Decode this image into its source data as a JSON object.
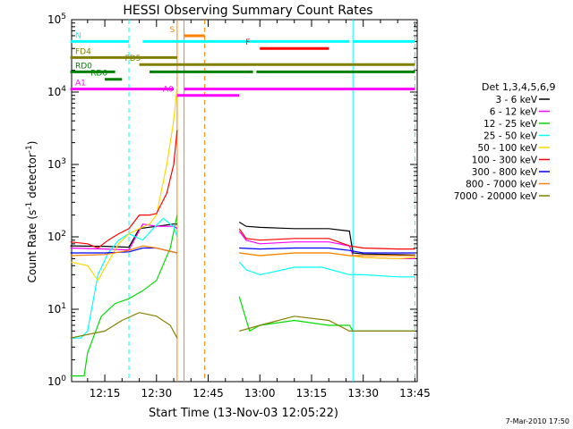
{
  "chart_data": {
    "type": "line",
    "title": "HESSI Observing Summary Count Rates",
    "xlabel": "Start Time (13-Nov-03 12:05:22)",
    "ylabel": "Count Rate (s",
    "ylabel_sup1": "-1",
    "ylabel_mid": " detector",
    "ylabel_sup2": "-1",
    "ylabel_end": ")",
    "y_scale": "log",
    "ylim": [
      1,
      100000
    ],
    "xlim": [
      "12:05:22",
      "13:45:40"
    ],
    "y_ticks": [
      {
        "value": 1,
        "base": "10",
        "exp": "0"
      },
      {
        "value": 10,
        "base": "10",
        "exp": "1"
      },
      {
        "value": 100,
        "base": "10",
        "exp": "2"
      },
      {
        "value": 1000,
        "base": "10",
        "exp": "3"
      },
      {
        "value": 10000,
        "base": "10",
        "exp": "4"
      },
      {
        "value": 100000,
        "base": "10",
        "exp": "5"
      }
    ],
    "x_ticks": [
      {
        "time": "12:15",
        "label": "12:15"
      },
      {
        "time": "12:30",
        "label": "12:30"
      },
      {
        "time": "12:45",
        "label": "12:45"
      },
      {
        "time": "13:00",
        "label": "13:00"
      },
      {
        "time": "13:15",
        "label": "13:15"
      },
      {
        "time": "13:30",
        "label": "13:30"
      },
      {
        "time": "13:45",
        "label": "13:45"
      }
    ],
    "legend_title": "Det 1,3,4,5,6,9",
    "series": [
      {
        "name": "3 - 6 keV",
        "color": "#000000",
        "points": [
          [
            "12:05",
            "75"
          ],
          [
            "12:15",
            "74"
          ],
          [
            "12:22",
            "72"
          ],
          [
            "12:25",
            "130"
          ],
          [
            "12:30",
            "140"
          ],
          [
            "12:35",
            "150"
          ],
          [
            "12:36",
            "150"
          ],
          [
            "12:54",
            "160"
          ],
          [
            "12:56",
            "140"
          ],
          [
            "13:00",
            "135"
          ],
          [
            "13:10",
            "130"
          ],
          [
            "13:20",
            "130"
          ],
          [
            "13:26",
            "120"
          ],
          [
            "13:27",
            "60"
          ],
          [
            "13:30",
            "58"
          ],
          [
            "13:40",
            "57"
          ],
          [
            "13:45",
            "56"
          ]
        ]
      },
      {
        "name": "6 - 12 keV",
        "color": "#ff00ff",
        "points": [
          [
            "12:05",
            "70"
          ],
          [
            "12:15",
            "68"
          ],
          [
            "12:22",
            "66"
          ],
          [
            "12:26",
            "150"
          ],
          [
            "12:30",
            "140"
          ],
          [
            "12:35",
            "140"
          ],
          [
            "12:36",
            "130"
          ],
          [
            "12:54",
            "120"
          ],
          [
            "12:56",
            "90"
          ],
          [
            "13:00",
            "80"
          ],
          [
            "13:10",
            "85"
          ],
          [
            "13:20",
            "85"
          ],
          [
            "13:26",
            "75"
          ],
          [
            "13:27",
            "55"
          ],
          [
            "13:30",
            "52"
          ],
          [
            "13:40",
            "50"
          ],
          [
            "13:45",
            "50"
          ]
        ]
      },
      {
        "name": "12 - 25 keV",
        "color": "#00dd00",
        "points": [
          [
            "12:05",
            "1.2"
          ],
          [
            "12:09",
            "1.2"
          ],
          [
            "12:10",
            "2.5"
          ],
          [
            "12:14",
            "8"
          ],
          [
            "12:18",
            "12"
          ],
          [
            "12:22",
            "14"
          ],
          [
            "12:26",
            "18"
          ],
          [
            "12:30",
            "25"
          ],
          [
            "12:34",
            "70"
          ],
          [
            "12:36",
            "200"
          ],
          [
            "12:54",
            "15"
          ],
          [
            "12:57",
            "5"
          ],
          [
            "13:00",
            "6"
          ],
          [
            "13:10",
            "7"
          ],
          [
            "13:20",
            "6"
          ],
          [
            "13:26",
            "6"
          ],
          [
            "13:27",
            "5"
          ],
          [
            "13:30",
            "5"
          ],
          [
            "13:40",
            "5"
          ],
          [
            "13:45",
            "5"
          ]
        ]
      },
      {
        "name": "25 - 50 keV",
        "color": "#00ffff",
        "points": [
          [
            "12:05",
            "4"
          ],
          [
            "12:08",
            "4"
          ],
          [
            "12:10",
            "5"
          ],
          [
            "12:13",
            "30"
          ],
          [
            "12:16",
            "60"
          ],
          [
            "12:19",
            "90"
          ],
          [
            "12:22",
            "110"
          ],
          [
            "12:26",
            "90"
          ],
          [
            "12:29",
            "130"
          ],
          [
            "12:32",
            "180"
          ],
          [
            "12:34",
            "150"
          ],
          [
            "12:35",
            "140"
          ],
          [
            "12:36",
            "100"
          ],
          [
            "12:54",
            "45"
          ],
          [
            "12:56",
            "35"
          ],
          [
            "13:00",
            "30"
          ],
          [
            "13:10",
            "38"
          ],
          [
            "13:18",
            "38"
          ],
          [
            "13:26",
            "30"
          ],
          [
            "13:30",
            "30"
          ],
          [
            "13:40",
            "28"
          ],
          [
            "13:45",
            "28"
          ]
        ]
      },
      {
        "name": "50 - 100 keV",
        "color": "#ffd700",
        "points": [
          [
            "12:05",
            "45"
          ],
          [
            "12:10",
            "40"
          ],
          [
            "12:13",
            "25"
          ],
          [
            "12:16",
            "45"
          ],
          [
            "12:19",
            "80"
          ],
          [
            "12:22",
            "110"
          ],
          [
            "12:25",
            "130"
          ],
          [
            "12:28",
            "150"
          ],
          [
            "12:30",
            "200"
          ],
          [
            "12:33",
            "1000"
          ],
          [
            "12:35",
            "4000"
          ],
          [
            "12:36",
            "12000"
          ],
          [
            "12:54",
            "60"
          ],
          [
            "13:00",
            "55"
          ],
          [
            "13:10",
            "60"
          ],
          [
            "13:20",
            "60"
          ],
          [
            "13:26",
            "55"
          ],
          [
            "13:30",
            "52"
          ],
          [
            "13:40",
            "50"
          ],
          [
            "13:45",
            "52"
          ]
        ]
      },
      {
        "name": "100 - 300 keV",
        "color": "#ff0000",
        "points": [
          [
            "12:05",
            "85"
          ],
          [
            "12:10",
            "80"
          ],
          [
            "12:13",
            "70"
          ],
          [
            "12:16",
            "90"
          ],
          [
            "12:19",
            "110"
          ],
          [
            "12:22",
            "130"
          ],
          [
            "12:25",
            "200"
          ],
          [
            "12:28",
            "200"
          ],
          [
            "12:30",
            "210"
          ],
          [
            "12:33",
            "400"
          ],
          [
            "12:35",
            "1000"
          ],
          [
            "12:36",
            "3000"
          ],
          [
            "12:54",
            "130"
          ],
          [
            "12:56",
            "95"
          ],
          [
            "13:00",
            "90"
          ],
          [
            "13:10",
            "95"
          ],
          [
            "13:20",
            "95"
          ],
          [
            "13:26",
            "75"
          ],
          [
            "13:30",
            "70"
          ],
          [
            "13:40",
            "68"
          ],
          [
            "13:45",
            "68"
          ]
        ]
      },
      {
        "name": "300 - 800 keV",
        "color": "#0000ff",
        "points": [
          [
            "12:05",
            "60"
          ],
          [
            "12:15",
            "60"
          ],
          [
            "12:22",
            "62"
          ],
          [
            "12:26",
            "70"
          ],
          [
            "12:30",
            "70"
          ],
          [
            "12:36",
            "60"
          ],
          [
            "12:54",
            "70"
          ],
          [
            "13:00",
            "68"
          ],
          [
            "13:10",
            "70"
          ],
          [
            "13:20",
            "70"
          ],
          [
            "13:26",
            "65"
          ],
          [
            "13:30",
            "60"
          ],
          [
            "13:40",
            "60"
          ],
          [
            "13:45",
            "60"
          ]
        ]
      },
      {
        "name": "800 - 7000 keV",
        "color": "#ff8000",
        "points": [
          [
            "12:05",
            "55"
          ],
          [
            "12:15",
            "57"
          ],
          [
            "12:22",
            "65"
          ],
          [
            "12:26",
            "75"
          ],
          [
            "12:30",
            "70"
          ],
          [
            "12:36",
            "60"
          ],
          [
            "12:54",
            "60"
          ],
          [
            "13:00",
            "55"
          ],
          [
            "13:10",
            "60"
          ],
          [
            "13:20",
            "60"
          ],
          [
            "13:26",
            "55"
          ],
          [
            "13:30",
            "55"
          ],
          [
            "13:40",
            "55"
          ],
          [
            "13:45",
            "55"
          ]
        ]
      },
      {
        "name": "7000 - 20000 keV",
        "color": "#808000",
        "points": [
          [
            "12:05",
            "4"
          ],
          [
            "12:15",
            "5"
          ],
          [
            "12:20",
            "7"
          ],
          [
            "12:25",
            "9"
          ],
          [
            "12:30",
            "8"
          ],
          [
            "12:34",
            "6"
          ],
          [
            "12:36",
            "4"
          ],
          [
            "12:54",
            "5"
          ],
          [
            "13:00",
            "6"
          ],
          [
            "13:10",
            "8"
          ],
          [
            "13:20",
            "7"
          ],
          [
            "13:26",
            "5"
          ],
          [
            "13:30",
            "5"
          ],
          [
            "13:40",
            "5"
          ],
          [
            "13:45",
            "5"
          ]
        ]
      }
    ],
    "flags": [
      {
        "label": "N",
        "color": "#00ffff",
        "y": 50000,
        "segments": [
          [
            "12:05",
            "12:22"
          ],
          [
            "12:26",
            "13:26"
          ],
          [
            "13:27",
            "13:45"
          ]
        ]
      },
      {
        "label": "S",
        "color": "#ff8000",
        "y": 60000,
        "segments": [
          [
            "12:38",
            "12:44"
          ]
        ]
      },
      {
        "label": "F",
        "color": "#ff0000",
        "y": 40000,
        "segments": [
          [
            "13:00",
            "13:20"
          ]
        ]
      },
      {
        "label": "FD4",
        "color": "#808000",
        "y": 30000,
        "segments": [
          [
            "12:05",
            "12:36"
          ]
        ]
      },
      {
        "label": "FD5",
        "color": "#808000",
        "y": 24000,
        "segments": [
          [
            "12:25",
            "13:45"
          ]
        ]
      },
      {
        "label": "RD0",
        "color": "#008000",
        "y": 19000,
        "segments": [
          [
            "12:05",
            "12:18"
          ],
          [
            "12:28",
            "12:58"
          ],
          [
            "12:59",
            "13:45"
          ]
        ]
      },
      {
        "label": "RD6",
        "color": "#008000",
        "y": 15000,
        "segments": [
          [
            "12:15",
            "12:20"
          ]
        ]
      },
      {
        "label": "A0",
        "color": "#ff00ff",
        "y": 9000,
        "segments": [
          [
            "12:36",
            "12:54"
          ]
        ]
      },
      {
        "label": "A1",
        "color": "#ff00ff",
        "y": 11000,
        "segments": [
          [
            "12:05",
            "12:35"
          ],
          [
            "12:38",
            "13:45"
          ]
        ]
      }
    ],
    "vlines": [
      {
        "time": "12:22",
        "color": "#00ffff",
        "dashed": true
      },
      {
        "time": "13:27",
        "color": "#00ffff",
        "dashed": false
      },
      {
        "time": "13:45",
        "color": "#00ffff",
        "dashed": true
      },
      {
        "time": "12:38",
        "color": "#ff8000",
        "dashed": false
      },
      {
        "time": "12:44",
        "color": "#ff8000",
        "dashed": true
      },
      {
        "time": "12:36",
        "color": "#ff8000",
        "dashed": false
      }
    ]
  },
  "footer_date": "7-Mar-2010 17:50"
}
